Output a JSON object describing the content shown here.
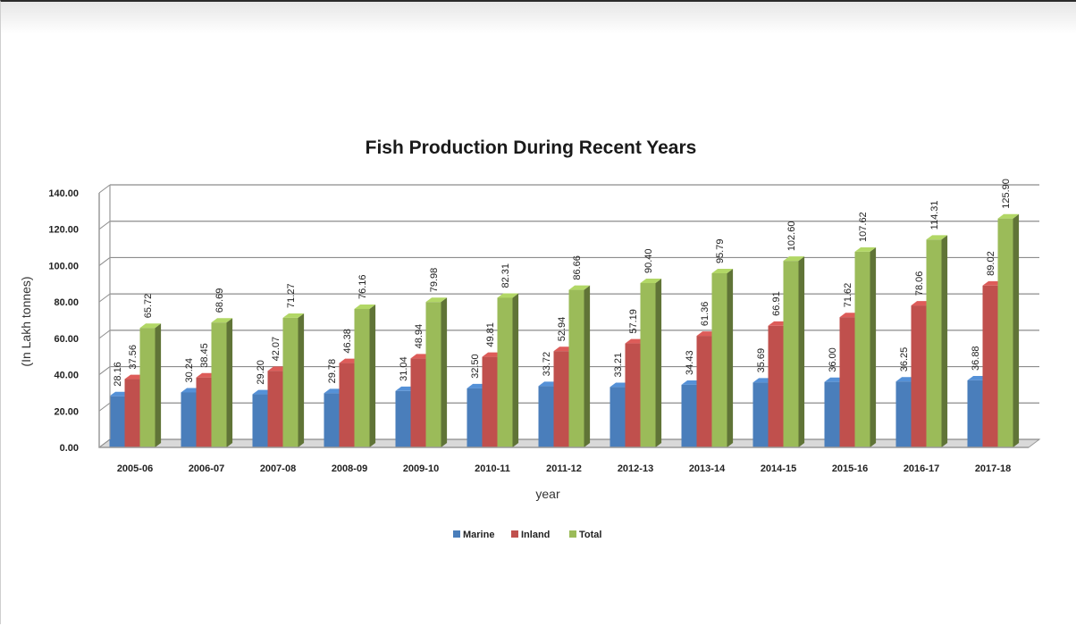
{
  "chart_data": {
    "type": "bar",
    "title": "Fish Production During Recent Years",
    "xlabel": "year",
    "ylabel": "(In Lakh tonnes)",
    "ylim": [
      0,
      140
    ],
    "yticks": [
      "0.00",
      "20.00",
      "40.00",
      "60.00",
      "80.00",
      "100.00",
      "120.00",
      "140.00"
    ],
    "grid": true,
    "legend_position": "bottom",
    "categories": [
      "2005-06",
      "2006-07",
      "2007-08",
      "2008-09",
      "2009-10",
      "2010-11",
      "2011-12",
      "2012-13",
      "2013-14",
      "2014-15",
      "2015-16",
      "2016-17",
      "2017-18"
    ],
    "series": [
      {
        "name": "Marine",
        "color": "#4a7ebb",
        "values": [
          28.16,
          30.24,
          29.2,
          29.78,
          31.04,
          32.5,
          33.72,
          33.21,
          34.43,
          35.69,
          36.0,
          36.25,
          36.88
        ],
        "labels": [
          "28.16",
          "30.24",
          "29.20",
          "29.78",
          "31.04",
          "32.50",
          "33.72",
          "33.21",
          "34.43",
          "35.69",
          "36.00",
          "36.25",
          "36.88"
        ]
      },
      {
        "name": "Inland",
        "color": "#c0504d",
        "values": [
          37.56,
          38.45,
          42.07,
          46.38,
          48.94,
          49.81,
          52.94,
          57.19,
          61.36,
          66.91,
          71.62,
          78.06,
          89.02
        ],
        "labels": [
          "37.56",
          "38.45",
          "42.07",
          "46.38",
          "48.94",
          "49.81",
          "52.94",
          "57.19",
          "61.36",
          "66.91",
          "71.62",
          "78.06",
          "89.02"
        ]
      },
      {
        "name": "Total",
        "color": "#9bbb59",
        "values": [
          65.72,
          68.69,
          71.27,
          76.16,
          79.98,
          82.31,
          86.66,
          90.4,
          95.79,
          102.6,
          107.62,
          114.31,
          125.9
        ],
        "labels": [
          "65.72",
          "68.69",
          "71.27",
          "76.16",
          "79.98",
          "82.31",
          "86.66",
          "90.40",
          "95.79",
          "102.60",
          "107.62",
          "114.31",
          "125.90"
        ]
      }
    ]
  }
}
